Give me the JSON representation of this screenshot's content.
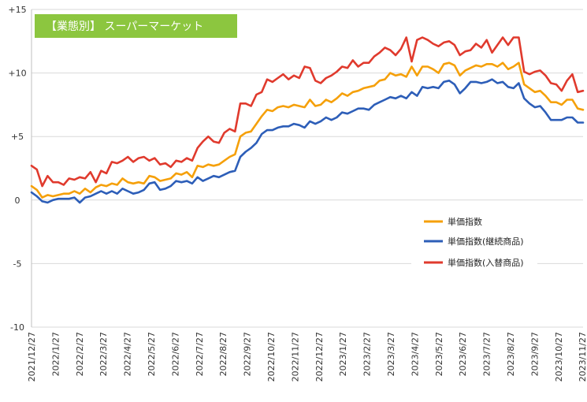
{
  "chart_data": {
    "type": "line",
    "title": "【業態別】 スーパーマーケット",
    "title_bg_color": "#8cc63f",
    "ylim": [
      -10,
      15
    ],
    "y_ticks": [
      15,
      10,
      5,
      0,
      -5,
      -10
    ],
    "y_tick_labels": [
      "+15",
      "+10",
      "+5",
      "0",
      "-5",
      "-10"
    ],
    "x_tick_labels": [
      "2021/12/27",
      "2022/1/27",
      "2022/2/27",
      "2022/3/27",
      "2022/4/27",
      "2022/5/27",
      "2022/6/27",
      "2022/7/27",
      "2022/8/27",
      "2022/9/27",
      "2022/10/27",
      "2022/11/27",
      "2022/12/27",
      "2023/1/27",
      "2023/2/27",
      "2023/3/27",
      "2023/4/27",
      "2023/5/27",
      "2023/6/27",
      "2023/7/27",
      "2023/8/27",
      "2023/9/27",
      "2023/10/27",
      "2023/11/27"
    ],
    "grid": "horizontal",
    "legend_position": "right",
    "series": [
      {
        "name": "単価指数",
        "color": "#f5a00a",
        "values": [
          1.1,
          0.8,
          0.2,
          0.4,
          0.3,
          0.4,
          0.5,
          0.5,
          0.7,
          0.5,
          0.9,
          0.6,
          1.0,
          1.2,
          1.1,
          1.3,
          1.2,
          1.7,
          1.4,
          1.3,
          1.4,
          1.3,
          1.9,
          1.8,
          1.5,
          1.6,
          1.7,
          2.1,
          2.0,
          2.2,
          1.8,
          2.7,
          2.6,
          2.8,
          2.7,
          2.8,
          3.1,
          3.4,
          3.6,
          5.0,
          5.3,
          5.4,
          6.0,
          6.6,
          7.1,
          7.0,
          7.3,
          7.4,
          7.3,
          7.5,
          7.4,
          7.3,
          7.9,
          7.4,
          7.5,
          7.9,
          7.7,
          8.0,
          8.4,
          8.2,
          8.5,
          8.6,
          8.8,
          8.9,
          9.0,
          9.4,
          9.5,
          10.0,
          9.8,
          9.9,
          9.7,
          10.5,
          9.8,
          10.5,
          10.5,
          10.3,
          10.0,
          10.7,
          10.8,
          10.6,
          9.8,
          10.2,
          10.4,
          10.6,
          10.5,
          10.7,
          10.7,
          10.5,
          10.8,
          10.3,
          10.5,
          10.8,
          9.1,
          8.8,
          8.5,
          8.6,
          8.2,
          7.7,
          7.7,
          7.5,
          7.9,
          7.9,
          7.2,
          7.1
        ]
      },
      {
        "name": "単価指数(継続商品)",
        "color": "#2d5eb8",
        "values": [
          0.6,
          0.3,
          -0.1,
          -0.2,
          0.0,
          0.1,
          0.1,
          0.1,
          0.2,
          -0.2,
          0.2,
          0.3,
          0.5,
          0.7,
          0.5,
          0.7,
          0.5,
          0.9,
          0.7,
          0.5,
          0.6,
          0.8,
          1.3,
          1.4,
          0.8,
          0.9,
          1.1,
          1.5,
          1.4,
          1.5,
          1.3,
          1.8,
          1.5,
          1.7,
          1.9,
          1.8,
          2.0,
          2.2,
          2.3,
          3.4,
          3.8,
          4.1,
          4.5,
          5.2,
          5.5,
          5.5,
          5.7,
          5.8,
          5.8,
          6.0,
          5.9,
          5.7,
          6.2,
          6.0,
          6.2,
          6.5,
          6.3,
          6.5,
          6.9,
          6.8,
          7.0,
          7.2,
          7.2,
          7.1,
          7.5,
          7.7,
          7.9,
          8.1,
          8.0,
          8.2,
          8.0,
          8.5,
          8.2,
          8.9,
          8.8,
          8.9,
          8.8,
          9.3,
          9.4,
          9.1,
          8.4,
          8.8,
          9.3,
          9.3,
          9.2,
          9.3,
          9.5,
          9.2,
          9.3,
          8.9,
          8.8,
          9.2,
          8.0,
          7.6,
          7.3,
          7.4,
          6.9,
          6.3,
          6.3,
          6.3,
          6.5,
          6.5,
          6.1,
          6.1
        ]
      },
      {
        "name": "単価指数(入替商品)",
        "color": "#e03a2d",
        "values": [
          2.7,
          2.4,
          1.1,
          1.9,
          1.4,
          1.4,
          1.2,
          1.7,
          1.6,
          1.8,
          1.7,
          2.2,
          1.4,
          2.3,
          2.1,
          3.0,
          2.9,
          3.1,
          3.4,
          3.0,
          3.3,
          3.4,
          3.1,
          3.3,
          2.8,
          2.9,
          2.6,
          3.1,
          3.0,
          3.3,
          3.1,
          4.1,
          4.6,
          5.0,
          4.6,
          4.5,
          5.3,
          5.6,
          5.4,
          7.6,
          7.6,
          7.4,
          8.3,
          8.5,
          9.5,
          9.3,
          9.6,
          9.9,
          9.5,
          9.8,
          9.6,
          10.5,
          10.4,
          9.4,
          9.2,
          9.6,
          9.8,
          10.1,
          10.5,
          10.4,
          11.0,
          10.5,
          10.8,
          10.8,
          11.3,
          11.6,
          12.0,
          11.8,
          11.4,
          11.9,
          12.8,
          10.9,
          12.6,
          12.8,
          12.6,
          12.3,
          12.1,
          12.4,
          12.5,
          12.2,
          11.4,
          11.7,
          11.8,
          12.3,
          12.0,
          12.6,
          11.6,
          12.2,
          12.8,
          12.2,
          12.8,
          12.8,
          10.1,
          9.9,
          10.1,
          10.2,
          9.8,
          9.2,
          9.1,
          8.6,
          9.4,
          9.9,
          8.5,
          8.6
        ]
      }
    ]
  }
}
